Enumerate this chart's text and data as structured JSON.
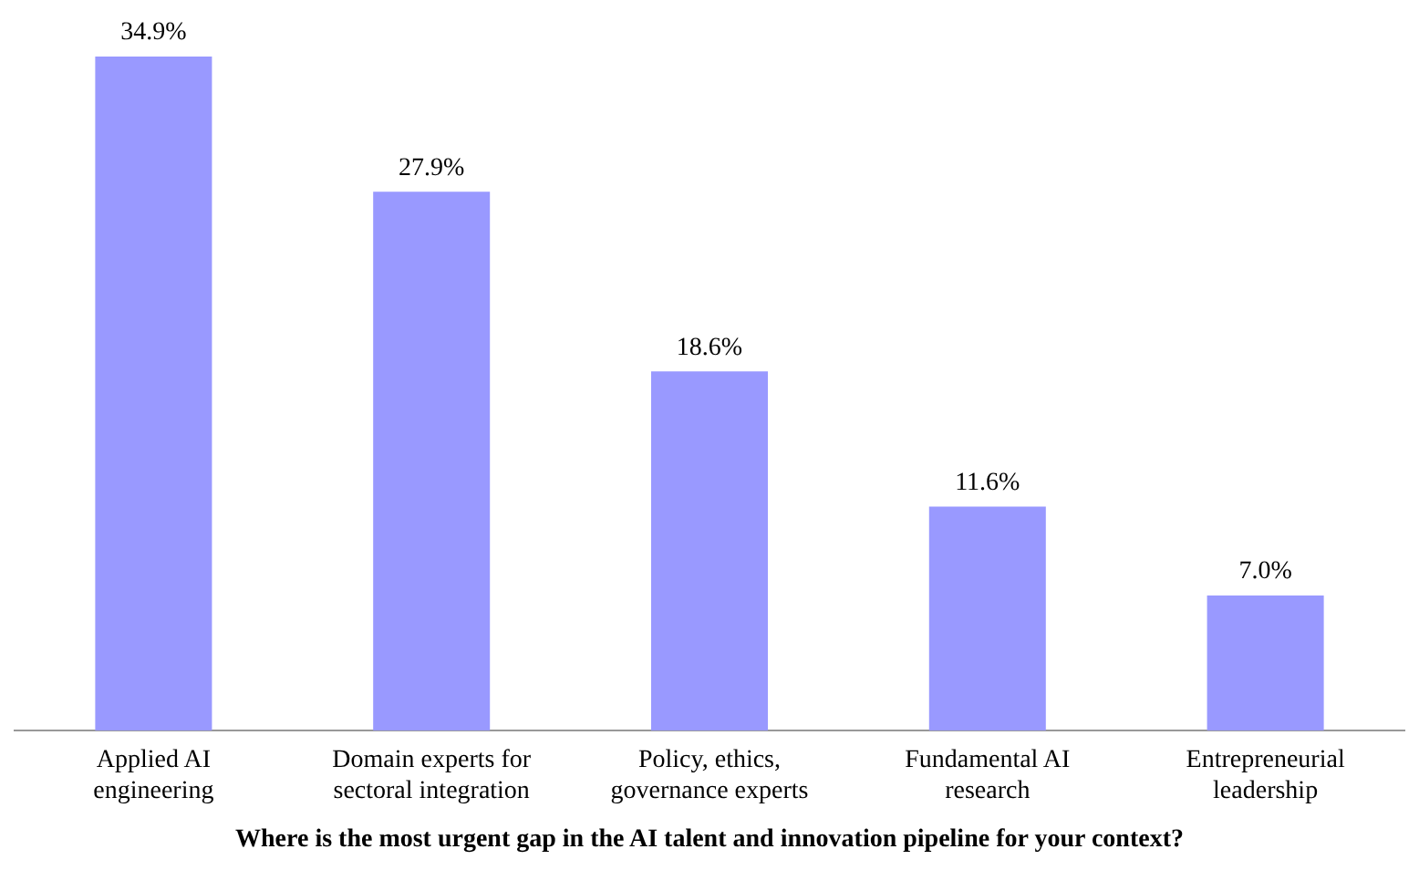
{
  "chart_data": {
    "type": "bar",
    "xlabel": "Where is the most urgent gap in the AI talent and innovation pipeline for your context?",
    "categories": [
      "Applied AI engineering",
      "Domain experts for sectoral integration",
      "Policy, ethics, governance experts",
      "Fundamental AI research",
      "Entrepreneurial leadership"
    ],
    "values": [
      34.9,
      27.9,
      18.6,
      11.6,
      7.0
    ],
    "value_labels": [
      "34.9%",
      "27.9%",
      "18.6%",
      "11.6%",
      "7.0%"
    ],
    "color": "#9999ff",
    "legend": false,
    "grid": false
  }
}
